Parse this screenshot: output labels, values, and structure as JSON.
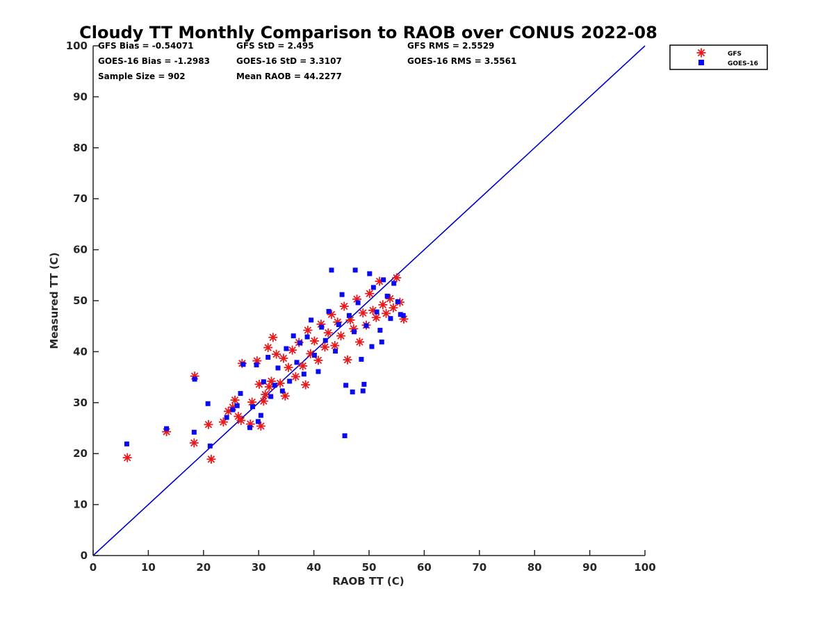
{
  "chart_data": {
    "type": "scatter",
    "title": "Cloudy TT Monthly Comparison to RAOB over CONUS 2022-08",
    "xlabel": "RAOB TT (C)",
    "ylabel": "Measured TT (C)",
    "xlim": [
      0,
      100
    ],
    "ylim": [
      0,
      100
    ],
    "xticks": [
      "0",
      "10",
      "20",
      "30",
      "40",
      "50",
      "60",
      "70",
      "80",
      "90",
      "100"
    ],
    "yticks": [
      "0",
      "10",
      "20",
      "30",
      "40",
      "50",
      "60",
      "70",
      "80",
      "90",
      "100"
    ],
    "grid": false,
    "legend_position": "top-right, outside plot",
    "reference_line": {
      "from": [
        0,
        0
      ],
      "to": [
        100,
        100
      ],
      "color": "#0000cc"
    },
    "stats": [
      "GFS Bias = -0.54071",
      "GFS StD = 2.495",
      "GFS RMS = 2.5529",
      "GOES-16 Bias = -1.2983",
      "GOES-16 StD = 3.3107",
      "GOES-16 RMS = 3.5561",
      "Sample Size = 902",
      "Mean RAOB = 44.2277"
    ],
    "series": [
      {
        "name": "GFS",
        "marker": "asterisk",
        "color": "#e8191c",
        "points": [
          [
            6.2,
            19.2
          ],
          [
            13.3,
            24.3
          ],
          [
            18.3,
            22.1
          ],
          [
            18.4,
            35.2
          ],
          [
            20.9,
            25.7
          ],
          [
            21.4,
            18.9
          ],
          [
            23.6,
            26.2
          ],
          [
            24.5,
            28.3
          ],
          [
            25.3,
            29.1
          ],
          [
            25.7,
            30.5
          ],
          [
            26.3,
            27.3
          ],
          [
            26.8,
            26.5
          ],
          [
            27.0,
            37.7
          ],
          [
            28.5,
            25.8
          ],
          [
            28.8,
            30.1
          ],
          [
            29.7,
            38.2
          ],
          [
            30.1,
            33.6
          ],
          [
            30.4,
            25.4
          ],
          [
            30.9,
            30.3
          ],
          [
            31.2,
            31.6
          ],
          [
            31.7,
            40.8
          ],
          [
            31.9,
            33.1
          ],
          [
            32.3,
            34.2
          ],
          [
            32.6,
            42.8
          ],
          [
            33.2,
            39.5
          ],
          [
            33.9,
            33.8
          ],
          [
            34.5,
            38.7
          ],
          [
            34.8,
            31.3
          ],
          [
            35.4,
            36.9
          ],
          [
            36.1,
            40.3
          ],
          [
            36.7,
            35.1
          ],
          [
            37.3,
            41.8
          ],
          [
            38.0,
            37.2
          ],
          [
            38.5,
            33.5
          ],
          [
            38.9,
            44.2
          ],
          [
            39.4,
            39.6
          ],
          [
            40.1,
            42.1
          ],
          [
            40.8,
            38.3
          ],
          [
            41.3,
            45.4
          ],
          [
            42.0,
            40.9
          ],
          [
            42.6,
            43.7
          ],
          [
            43.2,
            47.3
          ],
          [
            43.8,
            41.2
          ],
          [
            44.3,
            45.8
          ],
          [
            44.9,
            43.1
          ],
          [
            45.5,
            48.9
          ],
          [
            46.1,
            38.4
          ],
          [
            46.6,
            46.2
          ],
          [
            47.2,
            44.5
          ],
          [
            47.8,
            50.3
          ],
          [
            48.3,
            41.9
          ],
          [
            48.9,
            47.6
          ],
          [
            49.5,
            45.2
          ],
          [
            50.1,
            51.4
          ],
          [
            50.7,
            48.1
          ],
          [
            51.3,
            46.7
          ],
          [
            51.9,
            53.8
          ],
          [
            52.5,
            49.2
          ],
          [
            53.1,
            47.5
          ],
          [
            53.8,
            50.4
          ],
          [
            54.4,
            48.6
          ],
          [
            55.0,
            54.5
          ],
          [
            55.6,
            49.7
          ],
          [
            56.3,
            46.4
          ]
        ]
      },
      {
        "name": "GOES-16",
        "marker": "square",
        "color": "#0a0af0",
        "points": [
          [
            6.1,
            21.9
          ],
          [
            13.3,
            24.9
          ],
          [
            18.3,
            24.2
          ],
          [
            18.4,
            34.6
          ],
          [
            20.8,
            29.8
          ],
          [
            21.2,
            21.5
          ],
          [
            24.2,
            27.1
          ],
          [
            25.3,
            28.6
          ],
          [
            26.1,
            29.4
          ],
          [
            26.7,
            31.8
          ],
          [
            27.2,
            37.5
          ],
          [
            28.4,
            25.1
          ],
          [
            28.9,
            29.2
          ],
          [
            29.6,
            37.4
          ],
          [
            29.9,
            26.3
          ],
          [
            30.4,
            27.5
          ],
          [
            30.9,
            34.1
          ],
          [
            31.7,
            38.9
          ],
          [
            32.2,
            31.2
          ],
          [
            32.9,
            33.4
          ],
          [
            33.5,
            36.8
          ],
          [
            34.3,
            32.3
          ],
          [
            35.0,
            40.6
          ],
          [
            35.6,
            34.2
          ],
          [
            36.3,
            43.1
          ],
          [
            36.9,
            37.9
          ],
          [
            37.5,
            41.7
          ],
          [
            38.2,
            35.6
          ],
          [
            38.8,
            42.9
          ],
          [
            39.5,
            46.2
          ],
          [
            40.1,
            39.3
          ],
          [
            40.8,
            36.1
          ],
          [
            41.4,
            44.8
          ],
          [
            42.1,
            42.2
          ],
          [
            42.7,
            47.9
          ],
          [
            43.2,
            56.0
          ],
          [
            43.9,
            40.1
          ],
          [
            44.5,
            45.3
          ],
          [
            45.1,
            51.2
          ],
          [
            45.6,
            23.5
          ],
          [
            45.8,
            33.4
          ],
          [
            46.4,
            47.1
          ],
          [
            47.0,
            32.1
          ],
          [
            47.3,
            43.9
          ],
          [
            47.5,
            56.0
          ],
          [
            48.0,
            49.6
          ],
          [
            48.6,
            38.5
          ],
          [
            48.9,
            32.3
          ],
          [
            49.1,
            33.6
          ],
          [
            49.5,
            45.1
          ],
          [
            50.1,
            55.3
          ],
          [
            50.5,
            41.0
          ],
          [
            50.8,
            52.6
          ],
          [
            51.4,
            47.8
          ],
          [
            52.0,
            44.2
          ],
          [
            52.3,
            41.9
          ],
          [
            52.6,
            54.1
          ],
          [
            53.3,
            50.9
          ],
          [
            53.9,
            46.5
          ],
          [
            54.5,
            53.4
          ],
          [
            55.2,
            49.8
          ],
          [
            55.7,
            47.3
          ],
          [
            56.2,
            47.1
          ]
        ]
      }
    ]
  }
}
